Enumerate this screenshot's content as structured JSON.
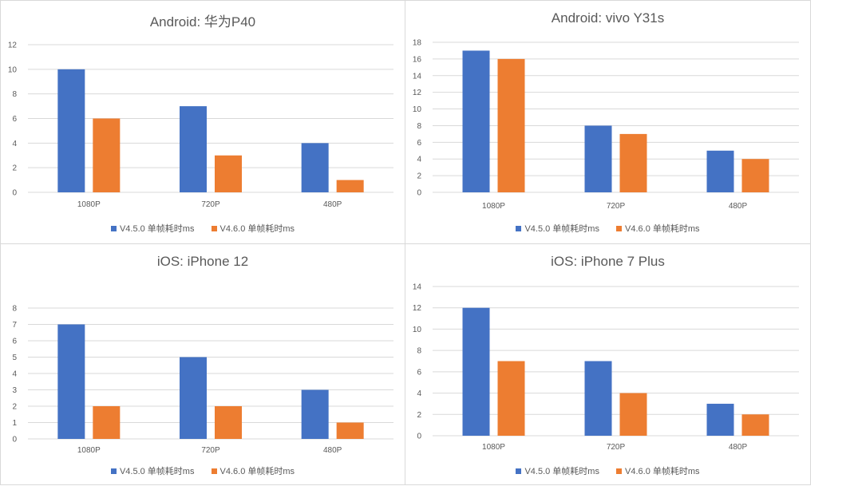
{
  "colors": {
    "series1": "#4472c4",
    "series2": "#ed7d31",
    "grid": "#d9d9d9",
    "text": "#595959"
  },
  "legend": {
    "series1": "V4.5.0 单帧耗时ms",
    "series2": "V4.6.0 单帧耗时ms"
  },
  "chart_data": [
    {
      "type": "bar",
      "title": "Android: 华为P40",
      "categories": [
        "1080P",
        "720P",
        "480P"
      ],
      "series": [
        {
          "name": "V4.5.0 单帧耗时ms",
          "values": [
            10,
            7,
            4
          ]
        },
        {
          "name": "V4.6.0 单帧耗时ms",
          "values": [
            6,
            3,
            1
          ]
        }
      ],
      "ylim": [
        0,
        12
      ],
      "ystep": 2,
      "grid": true,
      "legend_position": "bottom"
    },
    {
      "type": "bar",
      "title": "Android: vivo Y31s",
      "categories": [
        "1080P",
        "720P",
        "480P"
      ],
      "series": [
        {
          "name": "V4.5.0 单帧耗时ms",
          "values": [
            17,
            8,
            5
          ]
        },
        {
          "name": "V4.6.0 单帧耗时ms",
          "values": [
            16,
            7,
            4
          ]
        }
      ],
      "ylim": [
        0,
        18
      ],
      "ystep": 2,
      "grid": true,
      "legend_position": "bottom"
    },
    {
      "type": "bar",
      "title": "iOS: iPhone 12",
      "categories": [
        "1080P",
        "720P",
        "480P"
      ],
      "series": [
        {
          "name": "V4.5.0 单帧耗时ms",
          "values": [
            7,
            5,
            3
          ]
        },
        {
          "name": "V4.6.0 单帧耗时ms",
          "values": [
            2,
            2,
            1
          ]
        }
      ],
      "ylim": [
        0,
        8
      ],
      "ystep": 1,
      "grid": true,
      "legend_position": "bottom"
    },
    {
      "type": "bar",
      "title": "iOS: iPhone 7 Plus",
      "categories": [
        "1080P",
        "720P",
        "480P"
      ],
      "series": [
        {
          "name": "V4.5.0 单帧耗时ms",
          "values": [
            12,
            7,
            3
          ]
        },
        {
          "name": "V4.6.0 单帧耗时ms",
          "values": [
            7,
            4,
            2
          ]
        }
      ],
      "ylim": [
        0,
        14
      ],
      "ystep": 2,
      "grid": true,
      "legend_position": "bottom"
    }
  ]
}
